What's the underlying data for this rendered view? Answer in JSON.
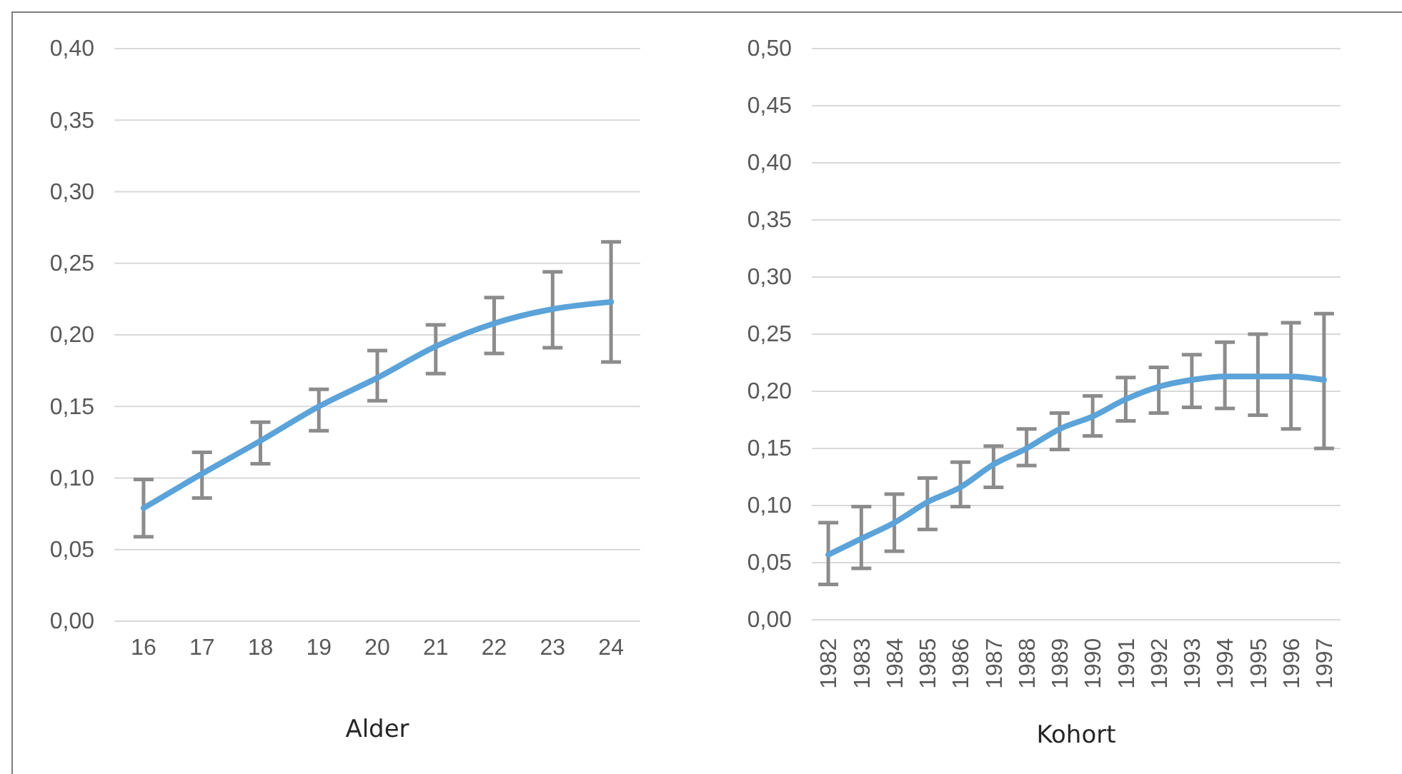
{
  "chart_data": [
    {
      "type": "line",
      "xlabel": "Alder",
      "categories": [
        "16",
        "17",
        "18",
        "19",
        "20",
        "21",
        "22",
        "23",
        "24"
      ],
      "series": [
        {
          "color": "#5ba3d9",
          "values": [
            0.079,
            0.103,
            0.126,
            0.15,
            0.17,
            0.192,
            0.208,
            0.218,
            0.223
          ],
          "errors": [
            [
              0.059,
              0.099
            ],
            [
              0.086,
              0.118
            ],
            [
              0.11,
              0.139
            ],
            [
              0.133,
              0.162
            ],
            [
              0.154,
              0.189
            ],
            [
              0.173,
              0.207
            ],
            [
              0.187,
              0.226
            ],
            [
              0.191,
              0.244
            ],
            [
              0.181,
              0.265
            ]
          ]
        }
      ],
      "ylim": [
        0,
        0.4
      ],
      "yticks": [
        {
          "value": 0,
          "label": "0,00"
        },
        {
          "value": 0.05,
          "label": "0,05"
        },
        {
          "value": 0.1,
          "label": "0,10"
        },
        {
          "value": 0.15,
          "label": "0,15"
        },
        {
          "value": 0.2,
          "label": "0,20"
        },
        {
          "value": 0.25,
          "label": "0,25"
        },
        {
          "value": 0.3,
          "label": "0,30"
        },
        {
          "value": 0.35,
          "label": "0,35"
        },
        {
          "value": 0.4,
          "label": "0,40"
        }
      ],
      "grid": "y"
    },
    {
      "type": "line",
      "xlabel": "Kohort",
      "categories": [
        "1982",
        "1983",
        "1984",
        "1985",
        "1986",
        "1987",
        "1988",
        "1989",
        "1990",
        "1991",
        "1992",
        "1993",
        "1994",
        "1995",
        "1996",
        "1997"
      ],
      "series": [
        {
          "color": "#5ba3d9",
          "values": [
            0.057,
            0.071,
            0.085,
            0.103,
            0.116,
            0.136,
            0.15,
            0.167,
            0.178,
            0.193,
            0.204,
            0.21,
            0.213,
            0.213,
            0.213,
            0.21
          ],
          "errors": [
            [
              0.031,
              0.085
            ],
            [
              0.045,
              0.099
            ],
            [
              0.06,
              0.11
            ],
            [
              0.079,
              0.124
            ],
            [
              0.099,
              0.138
            ],
            [
              0.116,
              0.152
            ],
            [
              0.135,
              0.167
            ],
            [
              0.149,
              0.181
            ],
            [
              0.161,
              0.196
            ],
            [
              0.174,
              0.212
            ],
            [
              0.181,
              0.221
            ],
            [
              0.186,
              0.232
            ],
            [
              0.185,
              0.243
            ],
            [
              0.179,
              0.25
            ],
            [
              0.167,
              0.26
            ],
            [
              0.15,
              0.268
            ]
          ]
        }
      ],
      "ylim": [
        0,
        0.5
      ],
      "yticks": [
        {
          "value": 0,
          "label": "0,00"
        },
        {
          "value": 0.05,
          "label": "0,05"
        },
        {
          "value": 0.1,
          "label": "0,10"
        },
        {
          "value": 0.15,
          "label": "0,15"
        },
        {
          "value": 0.2,
          "label": "0,20"
        },
        {
          "value": 0.25,
          "label": "0,25"
        },
        {
          "value": 0.3,
          "label": "0,30"
        },
        {
          "value": 0.35,
          "label": "0,35"
        },
        {
          "value": 0.4,
          "label": "0,40"
        },
        {
          "value": 0.45,
          "label": "0,45"
        },
        {
          "value": 0.5,
          "label": "0,50"
        }
      ],
      "grid": "y"
    }
  ]
}
